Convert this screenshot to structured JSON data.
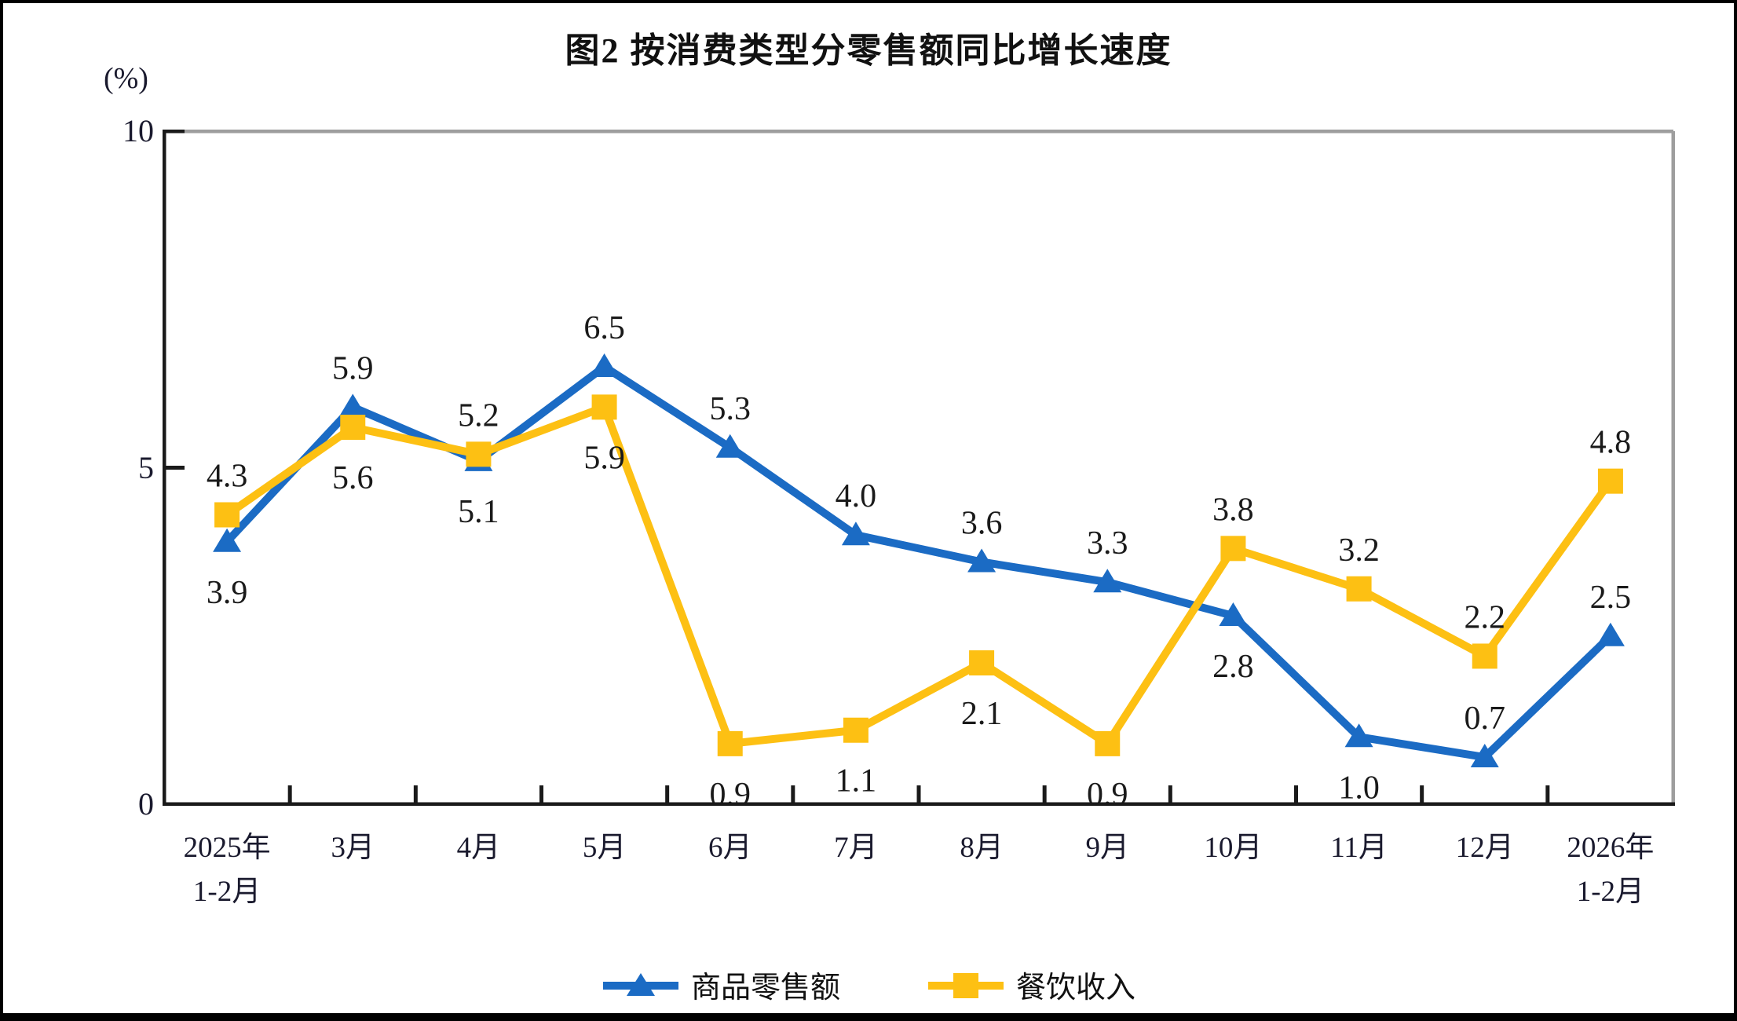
{
  "title": "图2 按消费类型分零售额同比增长速度",
  "unit_label": "(%)",
  "legend": {
    "items": [
      {
        "label": "商品零售额"
      },
      {
        "label": "餐饮收入"
      }
    ]
  },
  "colors": {
    "goods_blue": "#1B6BC4",
    "catering_yellow": "#FDC013",
    "axis_black": "#1a1a1a",
    "plot_border_gray": "#9E9E9E"
  },
  "chart_data": {
    "type": "line",
    "title": "图2 按消费类型分零售额同比增长速度",
    "ylabel": "(%)",
    "ylim": [
      0,
      10
    ],
    "y_ticks": [
      0,
      5,
      10
    ],
    "grid": false,
    "legend_position": "bottom",
    "categories": [
      "2025年\n1-2月",
      "3月",
      "4月",
      "5月",
      "6月",
      "7月",
      "8月",
      "9月",
      "10月",
      "11月",
      "12月",
      "2026年\n1-2月"
    ],
    "series": [
      {
        "name": "商品零售额",
        "marker": "triangle",
        "color": "#1B6BC4",
        "values": [
          3.9,
          5.9,
          5.1,
          6.5,
          5.3,
          4.0,
          3.6,
          3.3,
          2.8,
          1.0,
          0.7,
          2.5
        ],
        "label_pos": [
          "below",
          "above",
          "below",
          "above",
          "above",
          "above",
          "above",
          "above",
          "below",
          "below",
          "above",
          "above"
        ]
      },
      {
        "name": "餐饮收入",
        "marker": "square",
        "color": "#FDC013",
        "values": [
          4.3,
          5.6,
          5.2,
          5.9,
          0.9,
          1.1,
          2.1,
          0.9,
          3.8,
          3.2,
          2.2,
          4.8
        ],
        "label_pos": [
          "above",
          "below",
          "above",
          "below",
          "below",
          "below",
          "below",
          "below",
          "above",
          "above",
          "above",
          "above"
        ]
      }
    ]
  }
}
